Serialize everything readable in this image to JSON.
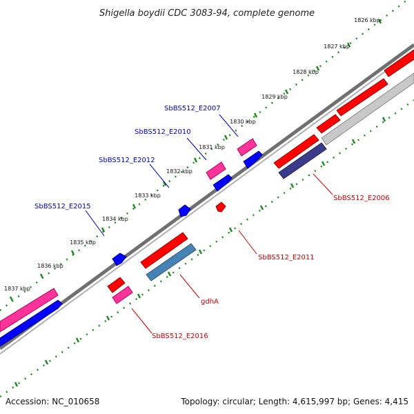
{
  "title": "Shigella boydii CDC 3083-94, complete genome",
  "footer": {
    "accession": "Accession: NC_010658",
    "summary": "Topology: circular; Length: 4,615,997 bp; Genes: 4,415"
  },
  "scale_labels": [
    "1826 kbp",
    "1827 kbp",
    "1828 kbp",
    "1829 kbp",
    "1830 kbp",
    "1831 kbp",
    "1832 kbp",
    "1833 kbp",
    "1834 kbp",
    "1835 kbp",
    "1836 kbp",
    "1837 kbp"
  ],
  "gene_labels": [
    {
      "name": "SbBS512_E2007",
      "color": "#0000cc"
    },
    {
      "name": "SbBS512_E2010",
      "color": "#0000cc"
    },
    {
      "name": "SbBS512_E2012",
      "color": "#0000cc"
    },
    {
      "name": "SbBS512_E2015",
      "color": "#0000cc"
    },
    {
      "name": "SbBS512_E2006",
      "color": "#cc0000"
    },
    {
      "name": "SbBS512_E2011",
      "color": "#cc0000"
    },
    {
      "name": "gdhA",
      "color": "#cc0000"
    },
    {
      "name": "SbBS512_E2016",
      "color": "#cc0000"
    }
  ],
  "colors": {
    "forward_cds": "#ff0000",
    "reverse_cds": "#0000ff",
    "pink_feature": "#ff3399",
    "steel_feature": "#4682b4",
    "navy_feature": "#3b3b8c",
    "gray_feature": "#c0c0c0",
    "backbone": "#808080",
    "tick": "#1a8c1a"
  }
}
